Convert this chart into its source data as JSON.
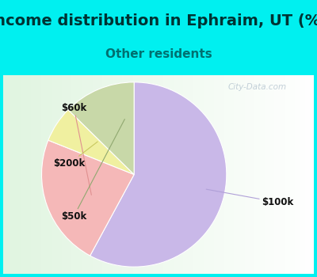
{
  "title": "Income distribution in Ephraim, UT (%)",
  "subtitle": "Other residents",
  "labels": [
    "$100k",
    "$60k",
    "$200k",
    "$50k"
  ],
  "sizes": [
    55,
    22,
    6,
    12
  ],
  "colors": [
    "#c9b8e8",
    "#f5b8b8",
    "#f0f0a0",
    "#c8d8a8"
  ],
  "startangle": 90,
  "background_color": "#00f0f0",
  "title_fontsize": 14,
  "subtitle_fontsize": 11,
  "title_color": "#003333",
  "subtitle_color": "#007070",
  "watermark": "City-Data.com",
  "label_font_size": 8.5,
  "line_colors": {
    "$100k": "#b0a0d8",
    "$60k": "#e09090",
    "$200k": "#c8c860",
    "$50k": "#90a870"
  }
}
